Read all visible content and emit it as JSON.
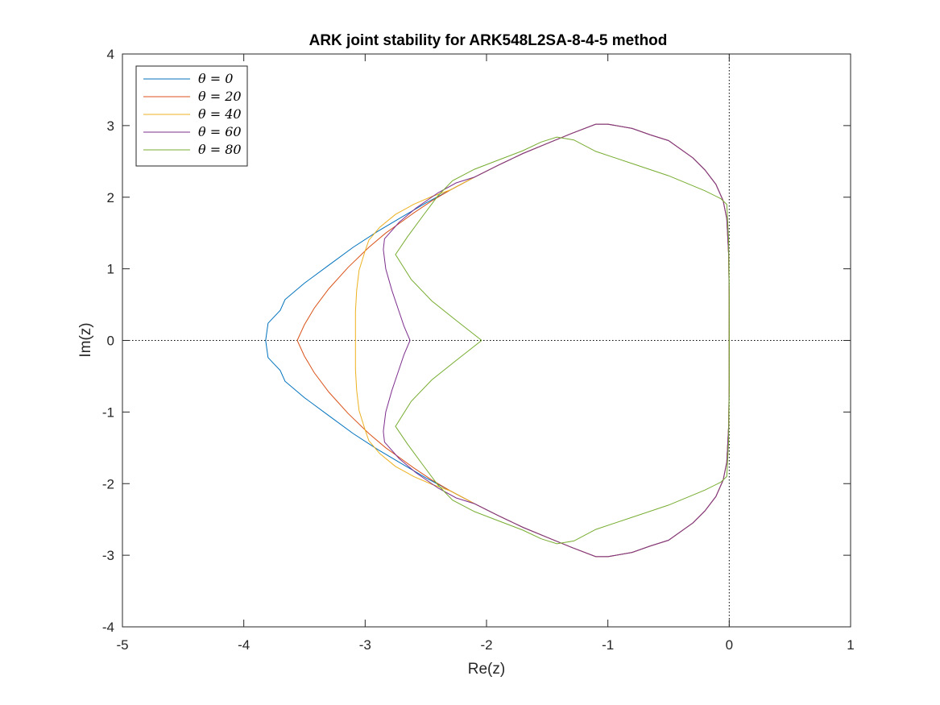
{
  "chart_data": {
    "type": "line",
    "title": "ARK joint stability for ARK548L2SA-8-4-5 method",
    "xlabel": "Re(z)",
    "ylabel": "Im(z)",
    "xlim": [
      -5,
      1
    ],
    "ylim": [
      -4,
      4
    ],
    "xticks": [
      -5,
      -4,
      -3,
      -2,
      -1,
      0,
      1
    ],
    "yticks": [
      -4,
      -3,
      -2,
      -1,
      0,
      1,
      2,
      3,
      4
    ],
    "xtick_labels": [
      "-5",
      "-4",
      "-3",
      "-2",
      "-1",
      "0",
      "1"
    ],
    "ytick_labels": [
      "-4",
      "-3",
      "-2",
      "-1",
      "0",
      "1",
      "2",
      "3",
      "4"
    ],
    "grid": false,
    "legend_position": "top-left",
    "reference_lines": [
      {
        "orientation": "horizontal",
        "value": 0,
        "style": "dotted"
      },
      {
        "orientation": "vertical",
        "value": 0,
        "style": "dotted"
      }
    ],
    "series": [
      {
        "name": "θ = 0",
        "color": "#0072BD",
        "points": [
          [
            -3.82,
            0
          ],
          [
            -3.81,
            0.12
          ],
          [
            -3.8,
            0.24
          ],
          [
            -3.75,
            0.33
          ],
          [
            -3.7,
            0.42
          ],
          [
            -3.66,
            0.57
          ],
          [
            -3.5,
            0.8
          ],
          [
            -3.3,
            1.05
          ],
          [
            -3.1,
            1.3
          ],
          [
            -2.9,
            1.52
          ],
          [
            -2.7,
            1.72
          ],
          [
            -2.5,
            1.92
          ],
          [
            -2.3,
            2.1
          ],
          [
            -2.1,
            2.28
          ],
          [
            -1.9,
            2.45
          ],
          [
            -1.7,
            2.61
          ],
          [
            -1.5,
            2.75
          ],
          [
            -1.3,
            2.89
          ],
          [
            -1.1,
            3.02
          ],
          [
            -1.0,
            3.02
          ],
          [
            -0.8,
            2.96
          ],
          [
            -0.65,
            2.87
          ],
          [
            -0.5,
            2.79
          ],
          [
            -0.3,
            2.55
          ],
          [
            -0.2,
            2.38
          ],
          [
            -0.11,
            2.18
          ],
          [
            -0.05,
            1.95
          ],
          [
            -0.02,
            1.7
          ],
          [
            -0.005,
            1.2
          ],
          [
            0,
            0.6
          ],
          [
            0,
            0
          ]
        ]
      },
      {
        "name": "θ = 20",
        "color": "#D95319",
        "points": [
          [
            -3.56,
            0
          ],
          [
            -3.5,
            0.22
          ],
          [
            -3.42,
            0.45
          ],
          [
            -3.3,
            0.72
          ],
          [
            -3.14,
            1.02
          ],
          [
            -2.97,
            1.3
          ],
          [
            -2.83,
            1.5
          ],
          [
            -2.73,
            1.62
          ],
          [
            -2.6,
            1.78
          ],
          [
            -2.45,
            1.95
          ],
          [
            -2.3,
            2.1
          ],
          [
            -2.1,
            2.28
          ],
          [
            -1.9,
            2.45
          ],
          [
            -1.7,
            2.61
          ],
          [
            -1.5,
            2.75
          ],
          [
            -1.3,
            2.89
          ],
          [
            -1.1,
            3.02
          ],
          [
            -1.0,
            3.02
          ],
          [
            -0.8,
            2.96
          ],
          [
            -0.65,
            2.87
          ],
          [
            -0.5,
            2.79
          ],
          [
            -0.3,
            2.55
          ],
          [
            -0.2,
            2.38
          ],
          [
            -0.11,
            2.18
          ],
          [
            -0.05,
            1.95
          ],
          [
            -0.02,
            1.7
          ],
          [
            -0.005,
            1.2
          ],
          [
            0,
            0.6
          ],
          [
            0,
            0
          ]
        ]
      },
      {
        "name": "θ = 40",
        "color": "#EDB120",
        "points": [
          [
            -3.08,
            0
          ],
          [
            -3.08,
            0.4
          ],
          [
            -3.07,
            0.7
          ],
          [
            -3.05,
            0.98
          ],
          [
            -3.0,
            1.25
          ],
          [
            -2.97,
            1.4
          ],
          [
            -2.88,
            1.58
          ],
          [
            -2.75,
            1.76
          ],
          [
            -2.6,
            1.9
          ],
          [
            -2.45,
            2.01
          ],
          [
            -2.3,
            2.1
          ],
          [
            -2.1,
            2.28
          ],
          [
            -1.9,
            2.45
          ],
          [
            -1.7,
            2.61
          ],
          [
            -1.5,
            2.75
          ],
          [
            -1.3,
            2.89
          ],
          [
            -1.1,
            3.02
          ],
          [
            -1.0,
            3.02
          ],
          [
            -0.8,
            2.96
          ],
          [
            -0.65,
            2.87
          ],
          [
            -0.5,
            2.79
          ],
          [
            -0.3,
            2.55
          ],
          [
            -0.2,
            2.38
          ],
          [
            -0.11,
            2.18
          ],
          [
            -0.05,
            1.95
          ],
          [
            -0.02,
            1.7
          ],
          [
            -0.005,
            1.2
          ],
          [
            0,
            0.6
          ],
          [
            0,
            0
          ]
        ]
      },
      {
        "name": "θ = 60",
        "color": "#7E2F8E",
        "points": [
          [
            -2.63,
            0
          ],
          [
            -2.68,
            0.2
          ],
          [
            -2.73,
            0.45
          ],
          [
            -2.78,
            0.7
          ],
          [
            -2.83,
            1.0
          ],
          [
            -2.85,
            1.27
          ],
          [
            -2.84,
            1.42
          ],
          [
            -2.72,
            1.65
          ],
          [
            -2.58,
            1.85
          ],
          [
            -2.4,
            2.06
          ],
          [
            -2.25,
            2.2
          ],
          [
            -2.1,
            2.28
          ],
          [
            -1.9,
            2.45
          ],
          [
            -1.7,
            2.61
          ],
          [
            -1.5,
            2.75
          ],
          [
            -1.3,
            2.89
          ],
          [
            -1.1,
            3.02
          ],
          [
            -1.0,
            3.02
          ],
          [
            -0.8,
            2.96
          ],
          [
            -0.65,
            2.87
          ],
          [
            -0.5,
            2.79
          ],
          [
            -0.3,
            2.55
          ],
          [
            -0.2,
            2.38
          ],
          [
            -0.11,
            2.18
          ],
          [
            -0.05,
            1.95
          ],
          [
            -0.02,
            1.7
          ],
          [
            -0.005,
            1.2
          ],
          [
            0,
            0.6
          ],
          [
            0,
            0
          ]
        ]
      },
      {
        "name": "θ = 80",
        "color": "#77AC30",
        "points": [
          [
            -2.04,
            0
          ],
          [
            -2.25,
            0.28
          ],
          [
            -2.45,
            0.55
          ],
          [
            -2.62,
            0.85
          ],
          [
            -2.75,
            1.2
          ],
          [
            -2.65,
            1.45
          ],
          [
            -2.52,
            1.75
          ],
          [
            -2.4,
            2.02
          ],
          [
            -2.28,
            2.23
          ],
          [
            -2.1,
            2.39
          ],
          [
            -1.9,
            2.52
          ],
          [
            -1.7,
            2.65
          ],
          [
            -1.55,
            2.77
          ],
          [
            -1.42,
            2.84
          ],
          [
            -1.28,
            2.8
          ],
          [
            -1.1,
            2.64
          ],
          [
            -0.8,
            2.47
          ],
          [
            -0.5,
            2.3
          ],
          [
            -0.2,
            2.09
          ],
          [
            -0.07,
            1.98
          ],
          [
            -0.02,
            1.9
          ],
          [
            -0.005,
            1.4
          ],
          [
            0,
            0.7
          ],
          [
            0,
            0
          ]
        ]
      }
    ]
  }
}
